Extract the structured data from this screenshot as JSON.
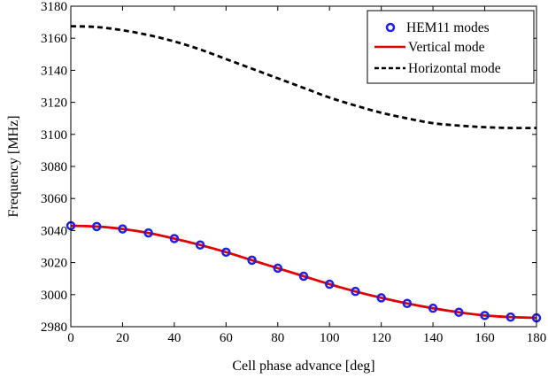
{
  "chart_data": {
    "type": "line",
    "title": "",
    "xlabel": "Cell phase advance [deg]",
    "ylabel": "Frequency [MHz]",
    "xlim": [
      0,
      180
    ],
    "ylim": [
      2980,
      3180
    ],
    "xticks": [
      0,
      20,
      40,
      60,
      80,
      100,
      120,
      140,
      160,
      180
    ],
    "yticks": [
      2980,
      3000,
      3020,
      3040,
      3060,
      3080,
      3100,
      3120,
      3140,
      3160,
      3180
    ],
    "grid": false,
    "legend_position": "top-right",
    "series": [
      {
        "name": "HEM11 modes",
        "style": "markers",
        "color": "#1f1fe6",
        "x": [
          0,
          10,
          20,
          30,
          40,
          50,
          60,
          70,
          80,
          90,
          100,
          110,
          120,
          130,
          140,
          150,
          160,
          170,
          180
        ],
        "y": [
          3043,
          3042.5,
          3041,
          3038.5,
          3035,
          3031,
          3026.5,
          3021.5,
          3016.5,
          3011.5,
          3006.5,
          3002,
          2998,
          2994.5,
          2991.5,
          2989,
          2987,
          2986,
          2985.5
        ]
      },
      {
        "name": "Vertical mode",
        "style": "solid",
        "color": "#e00000",
        "x": [
          0,
          10,
          20,
          30,
          40,
          50,
          60,
          70,
          80,
          90,
          100,
          110,
          120,
          130,
          140,
          150,
          160,
          170,
          180
        ],
        "y": [
          3043,
          3042.5,
          3041,
          3038.5,
          3035,
          3031,
          3026.5,
          3021.5,
          3016.5,
          3011.5,
          3006.5,
          3002,
          2998,
          2994.5,
          2991.5,
          2989,
          2987,
          2986,
          2985.5
        ]
      },
      {
        "name": "Horizontal mode",
        "style": "dashed",
        "color": "#000000",
        "x": [
          0,
          10,
          20,
          30,
          40,
          50,
          60,
          70,
          80,
          90,
          100,
          110,
          120,
          130,
          140,
          150,
          160,
          170,
          180
        ],
        "y": [
          3167.5,
          3167,
          3165,
          3162,
          3158,
          3153,
          3147,
          3141,
          3135,
          3129,
          3123,
          3118,
          3113.5,
          3110,
          3107,
          3105.5,
          3104.5,
          3104,
          3104
        ]
      }
    ]
  }
}
